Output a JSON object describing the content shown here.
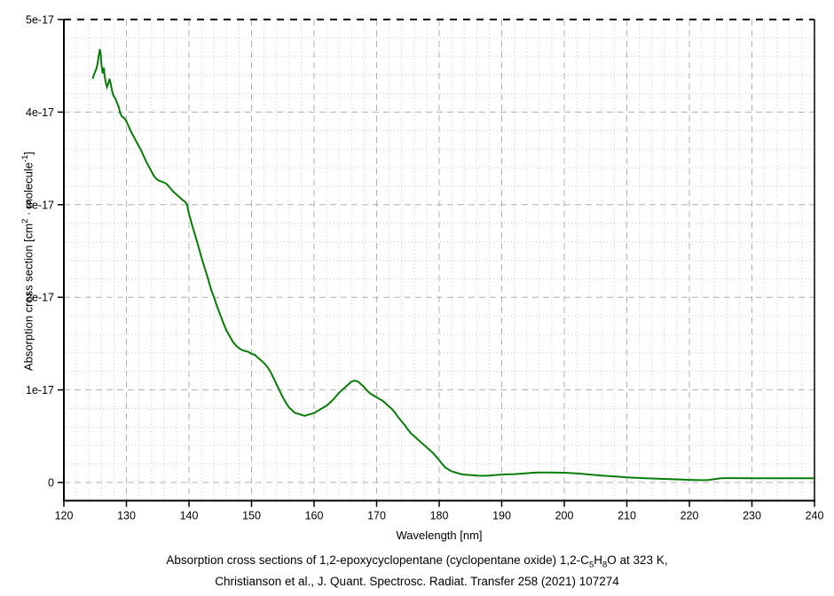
{
  "page": {
    "background": "#ffffff",
    "text_color": "#000000"
  },
  "chart_data": {
    "type": "line",
    "title": "",
    "xlabel": "Wavelength [nm]",
    "ylabel_segments": [
      {
        "t": "Absorption cross section [cm"
      },
      {
        "t": "2",
        "sup": true
      },
      {
        "t": " · molecule"
      },
      {
        "t": "-1",
        "sup": true
      },
      {
        "t": "]"
      }
    ],
    "xlim": [
      120,
      240
    ],
    "ylim_e17": [
      -0.2,
      5
    ],
    "x_major_ticks": [
      120,
      130,
      140,
      150,
      160,
      170,
      180,
      190,
      200,
      210,
      220,
      230,
      240
    ],
    "x_minor_step": 2,
    "y_major_ticks": [
      {
        "v": 5,
        "label": "5e-17"
      },
      {
        "v": 4,
        "label": "4e-17"
      },
      {
        "v": 3,
        "label": "3e-17"
      },
      {
        "v": 2,
        "label": "2e-17"
      },
      {
        "v": 1,
        "label": "1e-17"
      },
      {
        "v": 0,
        "label": "0"
      }
    ],
    "y_minor_step_e17": 0.2,
    "grid": {
      "major": "dashed",
      "minor": "dotted",
      "major_color": "#b0b0b0",
      "minor_color": "#c9c9c9",
      "top_border": "dashed-black"
    },
    "legend": "none",
    "line_color": "#077c07",
    "axis_color": "#000000",
    "series": [
      {
        "name": "absorption cross section (1e-17 cm2/molecule)",
        "points": [
          [
            124.6,
            4.36
          ],
          [
            124.8,
            4.4
          ],
          [
            125.0,
            4.44
          ],
          [
            125.2,
            4.47
          ],
          [
            125.4,
            4.53
          ],
          [
            125.6,
            4.62
          ],
          [
            125.75,
            4.68
          ],
          [
            125.9,
            4.62
          ],
          [
            126.0,
            4.52
          ],
          [
            126.2,
            4.42
          ],
          [
            126.4,
            4.48
          ],
          [
            126.5,
            4.4
          ],
          [
            126.7,
            4.32
          ],
          [
            126.9,
            4.27
          ],
          [
            127.1,
            4.31
          ],
          [
            127.3,
            4.36
          ],
          [
            127.5,
            4.3
          ],
          [
            127.7,
            4.23
          ],
          [
            127.9,
            4.18
          ],
          [
            128.2,
            4.15
          ],
          [
            128.5,
            4.1
          ],
          [
            128.8,
            4.05
          ],
          [
            129.0,
            3.99
          ],
          [
            129.3,
            3.95
          ],
          [
            129.6,
            3.94
          ],
          [
            130.0,
            3.9
          ],
          [
            130.4,
            3.84
          ],
          [
            130.8,
            3.78
          ],
          [
            131.2,
            3.73
          ],
          [
            131.6,
            3.68
          ],
          [
            132.0,
            3.63
          ],
          [
            132.4,
            3.58
          ],
          [
            132.8,
            3.52
          ],
          [
            133.2,
            3.46
          ],
          [
            133.6,
            3.41
          ],
          [
            134.0,
            3.36
          ],
          [
            134.4,
            3.31
          ],
          [
            134.8,
            3.28
          ],
          [
            135.2,
            3.26
          ],
          [
            135.6,
            3.25
          ],
          [
            136.0,
            3.24
          ],
          [
            136.5,
            3.22
          ],
          [
            137.0,
            3.18
          ],
          [
            137.5,
            3.14
          ],
          [
            138.0,
            3.11
          ],
          [
            138.5,
            3.08
          ],
          [
            139.0,
            3.05
          ],
          [
            139.4,
            3.03
          ],
          [
            139.7,
            3.0
          ],
          [
            140.0,
            2.9
          ],
          [
            140.5,
            2.78
          ],
          [
            141.0,
            2.67
          ],
          [
            141.5,
            2.55
          ],
          [
            142.0,
            2.43
          ],
          [
            142.5,
            2.32
          ],
          [
            143.0,
            2.21
          ],
          [
            143.5,
            2.09
          ],
          [
            144.0,
            2.0
          ],
          [
            144.5,
            1.9
          ],
          [
            145.0,
            1.81
          ],
          [
            145.5,
            1.72
          ],
          [
            146.0,
            1.64
          ],
          [
            146.5,
            1.58
          ],
          [
            147.0,
            1.52
          ],
          [
            147.5,
            1.48
          ],
          [
            148.0,
            1.45
          ],
          [
            148.5,
            1.43
          ],
          [
            149.0,
            1.42
          ],
          [
            149.5,
            1.41
          ],
          [
            150.0,
            1.39
          ],
          [
            150.5,
            1.38
          ],
          [
            151.0,
            1.35
          ],
          [
            151.5,
            1.32
          ],
          [
            152.0,
            1.29
          ],
          [
            152.5,
            1.25
          ],
          [
            153.0,
            1.2
          ],
          [
            153.5,
            1.13
          ],
          [
            154.0,
            1.06
          ],
          [
            154.5,
            0.99
          ],
          [
            155.0,
            0.92
          ],
          [
            155.5,
            0.86
          ],
          [
            156.0,
            0.81
          ],
          [
            156.5,
            0.78
          ],
          [
            157.0,
            0.75
          ],
          [
            157.5,
            0.74
          ],
          [
            158.0,
            0.73
          ],
          [
            158.5,
            0.72
          ],
          [
            159.0,
            0.73
          ],
          [
            159.5,
            0.74
          ],
          [
            160.0,
            0.75
          ],
          [
            160.5,
            0.77
          ],
          [
            161.0,
            0.79
          ],
          [
            161.5,
            0.81
          ],
          [
            162.0,
            0.83
          ],
          [
            162.5,
            0.86
          ],
          [
            163.0,
            0.89
          ],
          [
            163.5,
            0.93
          ],
          [
            164.0,
            0.97
          ],
          [
            164.5,
            1.0
          ],
          [
            165.0,
            1.03
          ],
          [
            165.5,
            1.06
          ],
          [
            166.0,
            1.09
          ],
          [
            166.5,
            1.1
          ],
          [
            167.0,
            1.09
          ],
          [
            167.5,
            1.06
          ],
          [
            168.0,
            1.03
          ],
          [
            168.5,
            0.99
          ],
          [
            169.0,
            0.96
          ],
          [
            169.5,
            0.94
          ],
          [
            170.0,
            0.92
          ],
          [
            170.5,
            0.9
          ],
          [
            171.0,
            0.88
          ],
          [
            171.5,
            0.85
          ],
          [
            172.0,
            0.82
          ],
          [
            172.5,
            0.79
          ],
          [
            173.0,
            0.75
          ],
          [
            173.5,
            0.7
          ],
          [
            174.0,
            0.66
          ],
          [
            174.5,
            0.62
          ],
          [
            175.0,
            0.57
          ],
          [
            175.5,
            0.53
          ],
          [
            176.0,
            0.5
          ],
          [
            176.5,
            0.47
          ],
          [
            177.0,
            0.44
          ],
          [
            177.5,
            0.41
          ],
          [
            178.0,
            0.38
          ],
          [
            178.5,
            0.35
          ],
          [
            179.0,
            0.32
          ],
          [
            179.5,
            0.28
          ],
          [
            180.0,
            0.24
          ],
          [
            180.5,
            0.2
          ],
          [
            181.0,
            0.16
          ],
          [
            181.5,
            0.14
          ],
          [
            182.0,
            0.12
          ],
          [
            182.5,
            0.11
          ],
          [
            183.0,
            0.1
          ],
          [
            183.5,
            0.09
          ],
          [
            184.0,
            0.085
          ],
          [
            185.0,
            0.08
          ],
          [
            186.0,
            0.075
          ],
          [
            187.0,
            0.072
          ],
          [
            188.0,
            0.075
          ],
          [
            189.0,
            0.08
          ],
          [
            190.0,
            0.085
          ],
          [
            191.0,
            0.088
          ],
          [
            192.0,
            0.09
          ],
          [
            193.0,
            0.095
          ],
          [
            194.0,
            0.1
          ],
          [
            195.0,
            0.105
          ],
          [
            196.0,
            0.107
          ],
          [
            197.0,
            0.107
          ],
          [
            198.0,
            0.107
          ],
          [
            199.0,
            0.106
          ],
          [
            200.0,
            0.105
          ],
          [
            201.0,
            0.102
          ],
          [
            202.0,
            0.098
          ],
          [
            203.0,
            0.092
          ],
          [
            204.0,
            0.086
          ],
          [
            205.0,
            0.08
          ],
          [
            206.0,
            0.075
          ],
          [
            207.0,
            0.07
          ],
          [
            208.0,
            0.066
          ],
          [
            209.0,
            0.061
          ],
          [
            210.0,
            0.056
          ],
          [
            211.0,
            0.052
          ],
          [
            212.0,
            0.049
          ],
          [
            213.0,
            0.046
          ],
          [
            214.0,
            0.043
          ],
          [
            215.0,
            0.04
          ],
          [
            216.0,
            0.038
          ],
          [
            217.0,
            0.036
          ],
          [
            218.0,
            0.034
          ],
          [
            219.0,
            0.031
          ],
          [
            220.0,
            0.028
          ],
          [
            221.0,
            0.026
          ],
          [
            222.0,
            0.025
          ],
          [
            223.0,
            0.027
          ],
          [
            224.0,
            0.035
          ],
          [
            225.0,
            0.045
          ],
          [
            226.0,
            0.047
          ],
          [
            228.0,
            0.047
          ],
          [
            230.0,
            0.046
          ],
          [
            232.0,
            0.046
          ],
          [
            234.0,
            0.045
          ],
          [
            236.0,
            0.045
          ],
          [
            238.0,
            0.045
          ],
          [
            240.0,
            0.045
          ]
        ]
      }
    ]
  },
  "caption": {
    "line1_segments": [
      {
        "t": "Absorption cross sections of 1,2-epoxycyclopentane (cyclopentane oxide) 1,2-C"
      },
      {
        "t": "5",
        "sub": true
      },
      {
        "t": "H"
      },
      {
        "t": "8",
        "sub": true
      },
      {
        "t": "O at 323 K,"
      }
    ],
    "line2": "Christianson et al., J. Quant. Spectrosc. Radiat. Transfer 258 (2021) 107274"
  }
}
